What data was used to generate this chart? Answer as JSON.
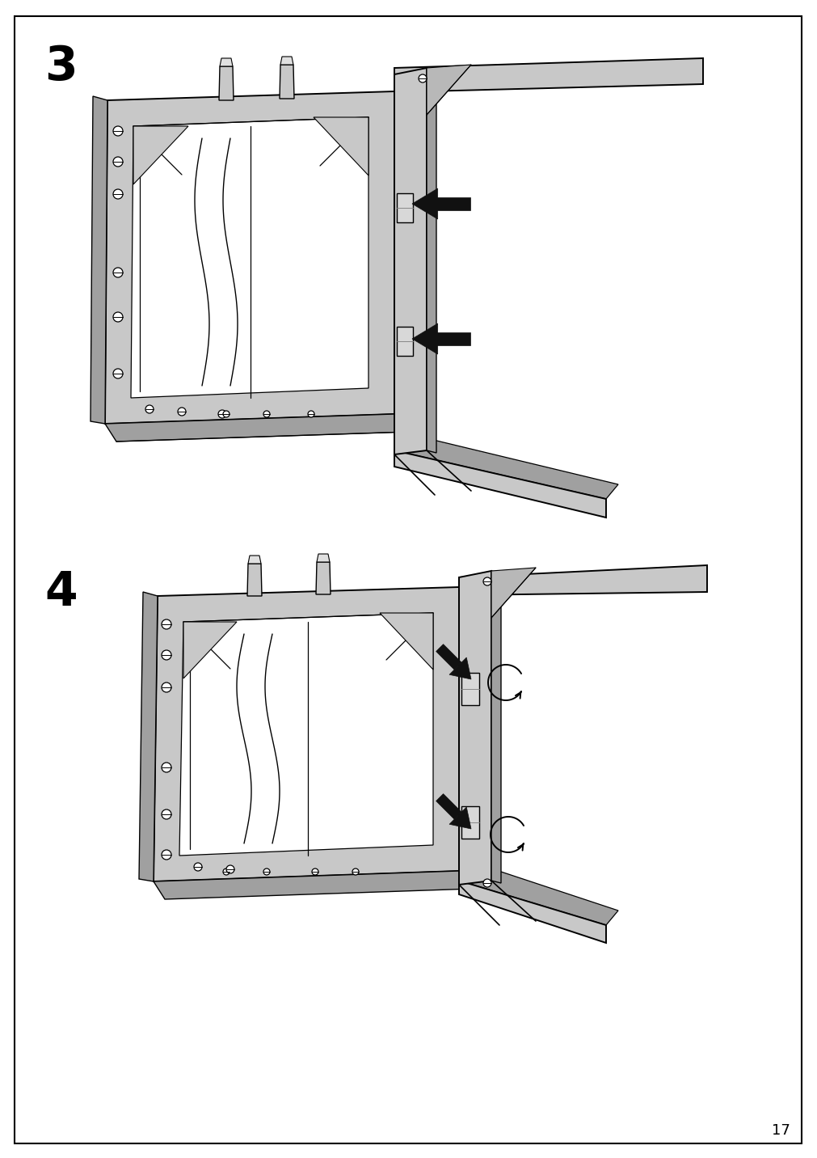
{
  "page_number": "17",
  "step3_label": "3",
  "step4_label": "4",
  "bg_color": "#ffffff",
  "line_color": "#000000",
  "frame_gray": "#c8c8c8",
  "frame_dark": "#a0a0a0",
  "frame_light": "#e0e0e0",
  "border_color": "#000000",
  "label_fontsize": 42,
  "page_num_fontsize": 13
}
